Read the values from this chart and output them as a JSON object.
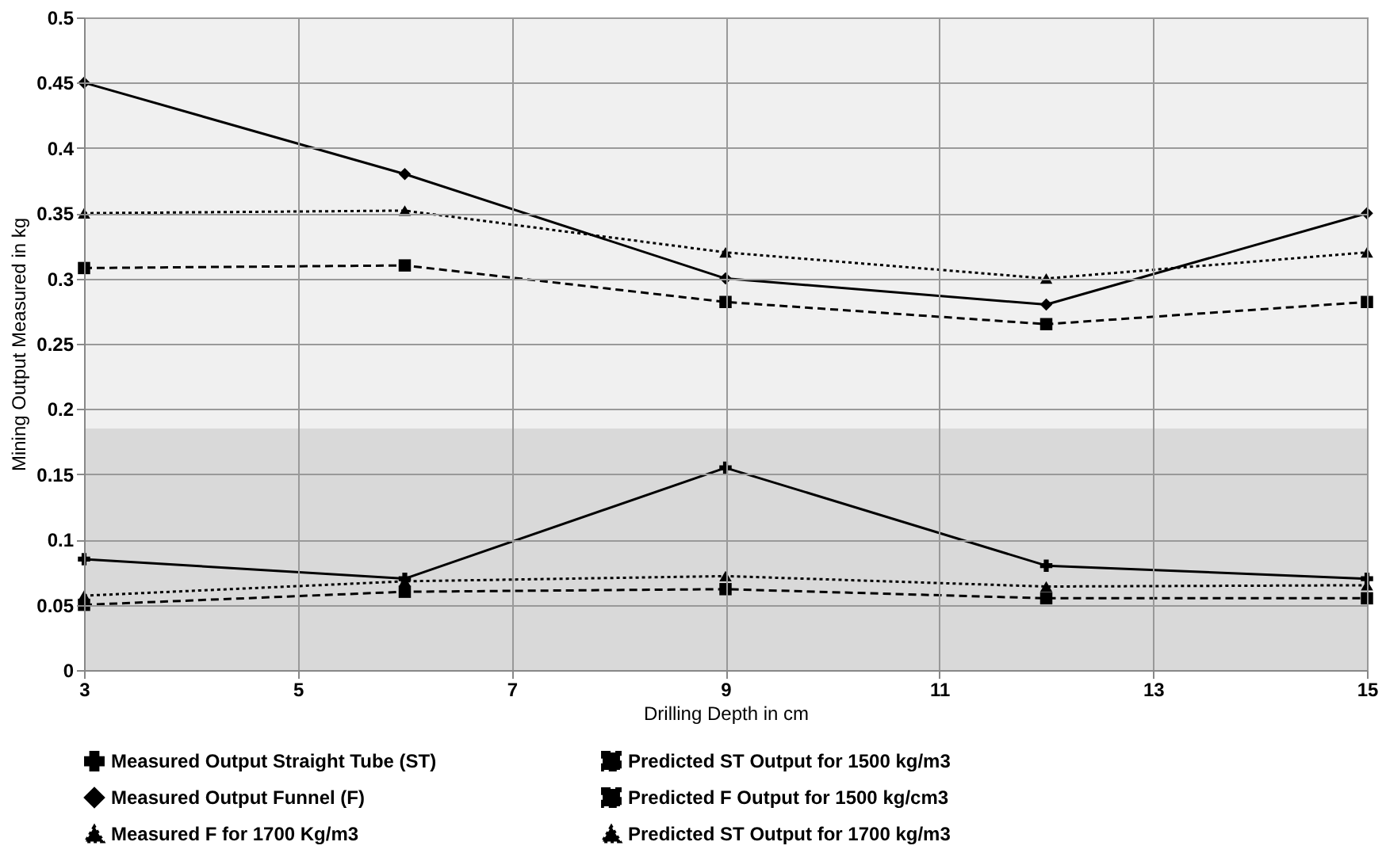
{
  "chart_data": {
    "type": "line",
    "xlabel": "Drilling Depth in cm",
    "ylabel": "Mining Output Measured in kg",
    "x": [
      3,
      6,
      9,
      12,
      15
    ],
    "series": [
      {
        "name": "Measured Output Straight Tube (ST)",
        "color": "#000000",
        "marker": "cross",
        "line_style": "solid",
        "values": [
          0.085,
          0.07,
          0.155,
          0.08,
          0.07
        ]
      },
      {
        "name": "Predicted ST Output for 1500 kg/m3",
        "color": "#000000",
        "marker": "square",
        "line_style": "dashed",
        "values": [
          0.05,
          0.06,
          0.062,
          0.055,
          0.055
        ]
      },
      {
        "name": "Measured Output Funnel (F)",
        "color": "#000000",
        "marker": "diamond",
        "line_style": "solid",
        "values": [
          0.45,
          0.38,
          0.3,
          0.28,
          0.35
        ]
      },
      {
        "name": "Predicted F Output for 1500 kg/cm3",
        "color": "#000000",
        "marker": "square",
        "line_style": "dashed",
        "values": [
          0.308,
          0.31,
          0.282,
          0.265,
          0.282
        ]
      },
      {
        "name": "Measured F for 1700 Kg/m3",
        "color": "#000000",
        "marker": "triangle",
        "line_style": "dotted",
        "values": [
          0.35,
          0.352,
          0.32,
          0.3,
          0.32
        ]
      },
      {
        "name": "Predicted ST Output for 1700 kg/m3",
        "color": "#000000",
        "marker": "triangle",
        "line_style": "dotted",
        "values": [
          0.057,
          0.068,
          0.072,
          0.064,
          0.065
        ]
      }
    ],
    "xlim": [
      3,
      15
    ],
    "xticks": [
      3,
      5,
      7,
      9,
      11,
      13,
      15
    ],
    "ylim": [
      0,
      0.5
    ],
    "yticks": [
      0,
      0.05,
      0.1,
      0.15,
      0.2,
      0.25,
      0.3,
      0.35,
      0.4,
      0.45,
      0.5
    ],
    "bands": [
      {
        "axis": "y",
        "from": 0,
        "to": 0.185,
        "color": "#d9d9d9"
      },
      {
        "axis": "y",
        "from": 0.185,
        "to": 0.5,
        "color": "#f0f0f0"
      }
    ],
    "grid": true,
    "legend": "bottom"
  }
}
